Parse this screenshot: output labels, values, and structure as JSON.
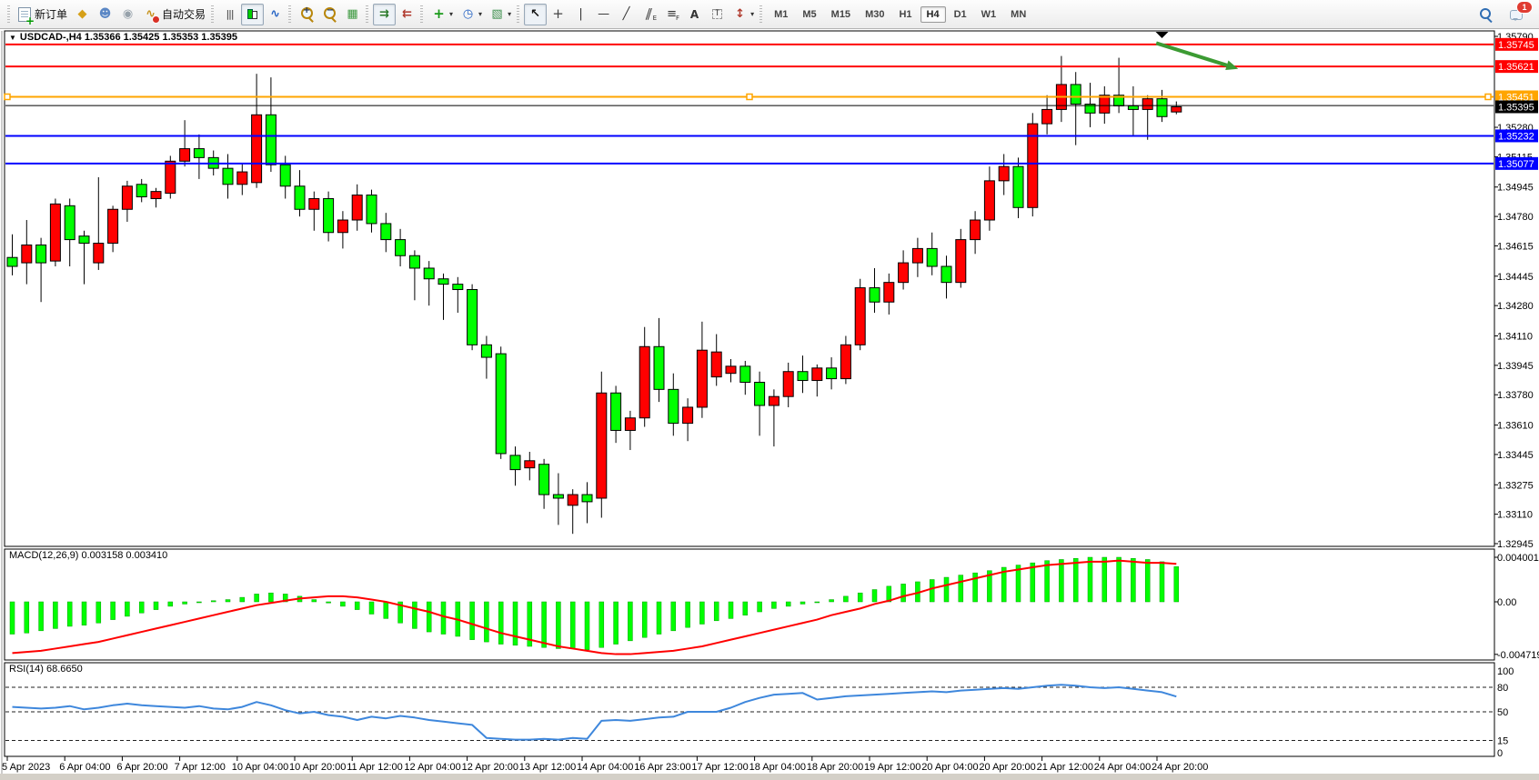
{
  "toolbar": {
    "groups": [
      {
        "name": "trade",
        "items": [
          {
            "name": "new-order",
            "icon": "new-order",
            "label": "新订单"
          },
          {
            "name": "market-watch",
            "icon": "market-watch"
          },
          {
            "name": "navigator",
            "icon": "navigator"
          },
          {
            "name": "alerts",
            "icon": "alerts"
          },
          {
            "name": "autotrading",
            "icon": "autotrading",
            "label": "自动交易"
          }
        ]
      },
      {
        "name": "chart-type",
        "items": [
          {
            "name": "bar-chart",
            "icon": "bar-chart"
          },
          {
            "name": "candlestick-chart",
            "icon": "candles",
            "pressed": true
          },
          {
            "name": "line-chart",
            "icon": "line-chart"
          }
        ]
      },
      {
        "name": "zoom",
        "items": [
          {
            "name": "zoom-in",
            "icon": "zoom-in"
          },
          {
            "name": "zoom-out",
            "icon": "zoom-out"
          },
          {
            "name": "tile-windows",
            "icon": "tile-windows"
          }
        ]
      },
      {
        "name": "scroll",
        "items": [
          {
            "name": "auto-scroll",
            "icon": "auto-scroll",
            "pressed": true
          },
          {
            "name": "chart-shift",
            "icon": "chart-shift"
          }
        ]
      },
      {
        "name": "insert",
        "items": [
          {
            "name": "indicators-add",
            "icon": "indicators",
            "dropdown": true
          },
          {
            "name": "periods",
            "icon": "periods",
            "dropdown": true
          },
          {
            "name": "templates",
            "icon": "templates",
            "dropdown": true
          }
        ]
      },
      {
        "name": "objects",
        "items": [
          {
            "name": "cursor",
            "icon": "cursor",
            "pressed": true
          },
          {
            "name": "crosshair",
            "icon": "crosshair"
          },
          {
            "name": "vertical-line",
            "icon": "vertical-line"
          },
          {
            "name": "horizontal-line",
            "icon": "horizontal-line"
          },
          {
            "name": "trendline",
            "icon": "trendline"
          },
          {
            "name": "equidistant-channel",
            "icon": "equidistant-channel"
          },
          {
            "name": "fibonacci",
            "icon": "fibonacci"
          },
          {
            "name": "text",
            "icon": "text"
          },
          {
            "name": "text-label",
            "icon": "text-label"
          },
          {
            "name": "arrows",
            "icon": "arrows",
            "dropdown": true
          }
        ]
      },
      {
        "name": "timeframes",
        "items": [
          {
            "name": "tf-m1",
            "label": "M1"
          },
          {
            "name": "tf-m5",
            "label": "M5"
          },
          {
            "name": "tf-m15",
            "label": "M15"
          },
          {
            "name": "tf-m30",
            "label": "M30"
          },
          {
            "name": "tf-h1",
            "label": "H1"
          },
          {
            "name": "tf-h4",
            "label": "H4",
            "pressed": true
          },
          {
            "name": "tf-d1",
            "label": "D1"
          },
          {
            "name": "tf-w1",
            "label": "W1"
          },
          {
            "name": "tf-mn",
            "label": "MN"
          }
        ]
      }
    ],
    "notification_badge": "1"
  },
  "chart": {
    "symbol_line": "USDCAD-,H4 1.35366 1.35425 1.35353 1.35395"
  },
  "chart_data": [
    {
      "type": "candlestick",
      "symbol": "USDCAD",
      "period": "H4",
      "title": "USDCAD-,H4 1.35366 1.35425 1.35353 1.35395",
      "current_quote": {
        "open": 1.35366,
        "high": 1.35425,
        "low": 1.35353,
        "close": 1.35395
      },
      "up_color": "#ff0000",
      "down_color": "#00ff00",
      "x_labels": [
        "5 Apr 2023",
        "6 Apr 04:00",
        "6 Apr 20:00",
        "7 Apr 12:00",
        "10 Apr 04:00",
        "10 Apr 20:00",
        "11 Apr 12:00",
        "12 Apr 04:00",
        "12 Apr 20:00",
        "13 Apr 12:00",
        "14 Apr 04:00",
        "16 Apr 23:00",
        "17 Apr 12:00",
        "18 Apr 04:00",
        "18 Apr 20:00",
        "19 Apr 12:00",
        "20 Apr 04:00",
        "20 Apr 20:00",
        "21 Apr 12:00",
        "24 Apr 04:00",
        "24 Apr 20:00"
      ],
      "candles_per_label": 4,
      "y_ticks": [
        1.3579,
        1.3528,
        1.35115,
        1.34945,
        1.3478,
        1.34615,
        1.34445,
        1.3428,
        1.3411,
        1.33945,
        1.3378,
        1.3361,
        1.33445,
        1.33275,
        1.3311,
        1.32945
      ],
      "levels": [
        {
          "price": 1.35745,
          "color": "#ff0000",
          "badge": true
        },
        {
          "price": 1.35621,
          "color": "#ff0000",
          "badge": true
        },
        {
          "price": 1.35451,
          "color": "#ffa500",
          "badge": true,
          "selected": true
        },
        {
          "price": 1.35402,
          "color": "#000000",
          "badge": false
        },
        {
          "price": 1.35232,
          "color": "#0000ff",
          "badge": true
        },
        {
          "price": 1.35077,
          "color": "#0000ff",
          "badge": true
        }
      ],
      "bid_badge": {
        "price": 1.35395,
        "bg": "#000000"
      },
      "annotation_arrow": {
        "from_candle": 79.6,
        "from_price": 1.35752,
        "to_candle": 85.3,
        "to_price": 1.35608,
        "color": "#3c9b33"
      },
      "shift_marker_candle": 80,
      "candles": [
        [
          1.3455,
          1.3468,
          1.3445,
          1.345
        ],
        [
          1.3452,
          1.3476,
          1.344,
          1.3462
        ],
        [
          1.3462,
          1.3466,
          1.343,
          1.3452
        ],
        [
          1.3453,
          1.3488,
          1.345,
          1.3485
        ],
        [
          1.3484,
          1.3488,
          1.345,
          1.3465
        ],
        [
          1.3467,
          1.347,
          1.344,
          1.3463
        ],
        [
          1.3452,
          1.35,
          1.3448,
          1.3463
        ],
        [
          1.3463,
          1.3484,
          1.3458,
          1.3482
        ],
        [
          1.3482,
          1.3498,
          1.3475,
          1.3495
        ],
        [
          1.3496,
          1.3499,
          1.3486,
          1.3489
        ],
        [
          1.3488,
          1.3494,
          1.3483,
          1.3492
        ],
        [
          1.3491,
          1.3512,
          1.3488,
          1.3509
        ],
        [
          1.3509,
          1.3532,
          1.3506,
          1.3516
        ],
        [
          1.3516,
          1.3524,
          1.3499,
          1.3511
        ],
        [
          1.3511,
          1.3515,
          1.3501,
          1.3505
        ],
        [
          1.3505,
          1.3513,
          1.3488,
          1.3496
        ],
        [
          1.3496,
          1.3508,
          1.349,
          1.3503
        ],
        [
          1.3497,
          1.3558,
          1.3494,
          1.3535
        ],
        [
          1.3535,
          1.3556,
          1.3503,
          1.3507
        ],
        [
          1.3507,
          1.3512,
          1.3488,
          1.3495
        ],
        [
          1.3495,
          1.3504,
          1.3478,
          1.3482
        ],
        [
          1.3482,
          1.3492,
          1.347,
          1.3488
        ],
        [
          1.3488,
          1.3492,
          1.3464,
          1.3469
        ],
        [
          1.3469,
          1.3481,
          1.346,
          1.3476
        ],
        [
          1.3476,
          1.3496,
          1.347,
          1.349
        ],
        [
          1.349,
          1.3493,
          1.3469,
          1.3474
        ],
        [
          1.3474,
          1.348,
          1.3458,
          1.3465
        ],
        [
          1.3465,
          1.3471,
          1.345,
          1.3456
        ],
        [
          1.3456,
          1.3459,
          1.3431,
          1.3449
        ],
        [
          1.3449,
          1.3453,
          1.3428,
          1.3443
        ],
        [
          1.3443,
          1.3446,
          1.342,
          1.344
        ],
        [
          1.344,
          1.3444,
          1.3424,
          1.3437
        ],
        [
          1.3437,
          1.344,
          1.3403,
          1.3406
        ],
        [
          1.3406,
          1.3411,
          1.3387,
          1.3399
        ],
        [
          1.3401,
          1.3405,
          1.3342,
          1.3345
        ],
        [
          1.3344,
          1.3349,
          1.3327,
          1.3336
        ],
        [
          1.3337,
          1.3346,
          1.333,
          1.3341
        ],
        [
          1.3339,
          1.3342,
          1.3314,
          1.3322
        ],
        [
          1.3322,
          1.3334,
          1.3305,
          1.332
        ],
        [
          1.3316,
          1.3325,
          1.33,
          1.3322
        ],
        [
          1.3322,
          1.3329,
          1.3306,
          1.3318
        ],
        [
          1.332,
          1.3391,
          1.3309,
          1.3379
        ],
        [
          1.3379,
          1.3383,
          1.3351,
          1.3358
        ],
        [
          1.3358,
          1.3369,
          1.3347,
          1.3365
        ],
        [
          1.3365,
          1.3416,
          1.336,
          1.3405
        ],
        [
          1.3405,
          1.3421,
          1.3374,
          1.3381
        ],
        [
          1.3381,
          1.339,
          1.3355,
          1.3362
        ],
        [
          1.3362,
          1.3376,
          1.3352,
          1.3371
        ],
        [
          1.3371,
          1.3419,
          1.3365,
          1.3403
        ],
        [
          1.3388,
          1.3412,
          1.3383,
          1.3402
        ],
        [
          1.339,
          1.3398,
          1.3385,
          1.3394
        ],
        [
          1.3394,
          1.3397,
          1.3378,
          1.3385
        ],
        [
          1.3385,
          1.3391,
          1.3355,
          1.3372
        ],
        [
          1.3372,
          1.3381,
          1.3349,
          1.3377
        ],
        [
          1.3377,
          1.3396,
          1.3371,
          1.3391
        ],
        [
          1.3391,
          1.34,
          1.3379,
          1.3386
        ],
        [
          1.3386,
          1.3395,
          1.3377,
          1.3393
        ],
        [
          1.3393,
          1.3399,
          1.3381,
          1.3387
        ],
        [
          1.3387,
          1.3411,
          1.3384,
          1.3406
        ],
        [
          1.3406,
          1.3443,
          1.3403,
          1.3438
        ],
        [
          1.3438,
          1.3449,
          1.3424,
          1.343
        ],
        [
          1.343,
          1.3446,
          1.3423,
          1.3441
        ],
        [
          1.3441,
          1.3459,
          1.3437,
          1.3452
        ],
        [
          1.3452,
          1.3466,
          1.3444,
          1.346
        ],
        [
          1.346,
          1.3469,
          1.3445,
          1.345
        ],
        [
          1.345,
          1.3456,
          1.3432,
          1.3441
        ],
        [
          1.3441,
          1.3471,
          1.3438,
          1.3465
        ],
        [
          1.3465,
          1.3481,
          1.3457,
          1.3476
        ],
        [
          1.3476,
          1.3506,
          1.347,
          1.3498
        ],
        [
          1.3498,
          1.3513,
          1.349,
          1.3506
        ],
        [
          1.3506,
          1.3511,
          1.3477,
          1.3483
        ],
        [
          1.3483,
          1.3536,
          1.3478,
          1.353
        ],
        [
          1.353,
          1.3546,
          1.3524,
          1.3538
        ],
        [
          1.3538,
          1.3568,
          1.3531,
          1.3552
        ],
        [
          1.3552,
          1.3559,
          1.3518,
          1.3541
        ],
        [
          1.3541,
          1.3553,
          1.3528,
          1.3536
        ],
        [
          1.3536,
          1.3551,
          1.353,
          1.3546
        ],
        [
          1.3546,
          1.3567,
          1.3536,
          1.354
        ],
        [
          1.354,
          1.3551,
          1.3523,
          1.3538
        ],
        [
          1.3538,
          1.3546,
          1.3521,
          1.3544
        ],
        [
          1.3544,
          1.3549,
          1.3531,
          1.3534
        ],
        [
          1.35366,
          1.35425,
          1.35353,
          1.35395
        ]
      ]
    },
    {
      "type": "bar",
      "name": "MACD",
      "label": "MACD(12,26,9) 0.003158 0.003410",
      "current_macd": 0.003158,
      "current_signal": 0.00341,
      "histogram_color": "#00ff00",
      "signal_color": "#ff0000",
      "y_ticks": [
        {
          "v": 0.004001,
          "label": "0.004001"
        },
        {
          "v": 0,
          "label": "0.00"
        },
        {
          "v": -0.004719,
          "label": "-0.004719"
        }
      ],
      "histogram": [
        -0.0029,
        -0.0028,
        -0.0026,
        -0.0024,
        -0.0022,
        -0.0021,
        -0.0019,
        -0.0016,
        -0.0013,
        -0.001,
        -0.0007,
        -0.0004,
        -0.0002,
        0.0,
        0.0001,
        0.0002,
        0.0004,
        0.0007,
        0.0008,
        0.0007,
        0.0005,
        0.0002,
        -0.0001,
        -0.0004,
        -0.0007,
        -0.0011,
        -0.0015,
        -0.0019,
        -0.0024,
        -0.0027,
        -0.0029,
        -0.0031,
        -0.0034,
        -0.0036,
        -0.0038,
        -0.0039,
        -0.004,
        -0.0041,
        -0.0042,
        -0.0042,
        -0.0043,
        -0.0041,
        -0.0038,
        -0.0035,
        -0.0032,
        -0.0029,
        -0.0026,
        -0.0023,
        -0.002,
        -0.0017,
        -0.0015,
        -0.0012,
        -0.0009,
        -0.0006,
        -0.0004,
        -0.0002,
        0.0,
        0.0002,
        0.0005,
        0.0008,
        0.0011,
        0.0014,
        0.0016,
        0.0018,
        0.002,
        0.0022,
        0.0024,
        0.0026,
        0.0028,
        0.0031,
        0.0033,
        0.0035,
        0.0037,
        0.0038,
        0.0039,
        0.004,
        0.004,
        0.004,
        0.0039,
        0.0038,
        0.0036,
        0.003158
      ],
      "signal": [
        -0.0046,
        -0.0045,
        -0.0044,
        -0.0042,
        -0.004,
        -0.0038,
        -0.0036,
        -0.0033,
        -0.003,
        -0.0027,
        -0.0024,
        -0.0021,
        -0.0018,
        -0.0015,
        -0.0012,
        -0.0009,
        -0.0006,
        -0.0003,
        -0.0001,
        0.0001,
        0.0003,
        0.0004,
        0.0005,
        0.0005,
        0.0004,
        0.0002,
        0.0,
        -0.0003,
        -0.0006,
        -0.0009,
        -0.0013,
        -0.0016,
        -0.002,
        -0.0024,
        -0.0028,
        -0.0031,
        -0.0034,
        -0.0037,
        -0.004,
        -0.0042,
        -0.0044,
        -0.0046,
        -0.0047,
        -0.0047,
        -0.0046,
        -0.0045,
        -0.0044,
        -0.0042,
        -0.004,
        -0.0037,
        -0.0034,
        -0.0031,
        -0.0028,
        -0.0025,
        -0.0022,
        -0.0019,
        -0.0016,
        -0.0012,
        -0.0009,
        -0.0006,
        -0.0002,
        0.0001,
        0.0005,
        0.0008,
        0.0012,
        0.0015,
        0.0018,
        0.0021,
        0.0024,
        0.0027,
        0.0029,
        0.0031,
        0.0033,
        0.0034,
        0.0035,
        0.0036,
        0.0036,
        0.0037,
        0.0036,
        0.0035,
        0.0035,
        0.00341
      ]
    },
    {
      "type": "line",
      "name": "RSI",
      "label": "RSI(14) 68.6650",
      "current": 68.665,
      "line_color": "#3e87dc",
      "y_ticks": [
        {
          "v": 100,
          "label": "100"
        },
        {
          "v": 80,
          "label": "80"
        },
        {
          "v": 50,
          "label": "50"
        },
        {
          "v": 15,
          "label": "15"
        },
        {
          "v": 0,
          "label": "0"
        }
      ],
      "dashed_levels": [
        80,
        50,
        15
      ],
      "values": [
        56,
        55,
        54,
        55,
        57,
        53,
        55,
        58,
        60,
        58,
        57,
        56,
        55,
        57,
        54,
        53,
        56,
        62,
        58,
        52,
        48,
        50,
        46,
        44,
        40,
        44,
        42,
        45,
        43,
        40,
        38,
        36,
        34,
        18,
        17,
        16,
        16,
        17,
        16,
        18,
        17,
        39,
        40,
        39,
        41,
        43,
        44,
        50,
        50,
        50,
        55,
        62,
        67,
        71,
        72,
        73,
        65,
        67,
        69,
        70,
        71,
        72,
        73,
        74,
        75,
        74,
        76,
        77,
        78,
        79,
        78,
        80,
        82,
        83,
        82,
        80,
        79,
        80,
        78,
        76,
        74,
        68.665
      ]
    }
  ]
}
